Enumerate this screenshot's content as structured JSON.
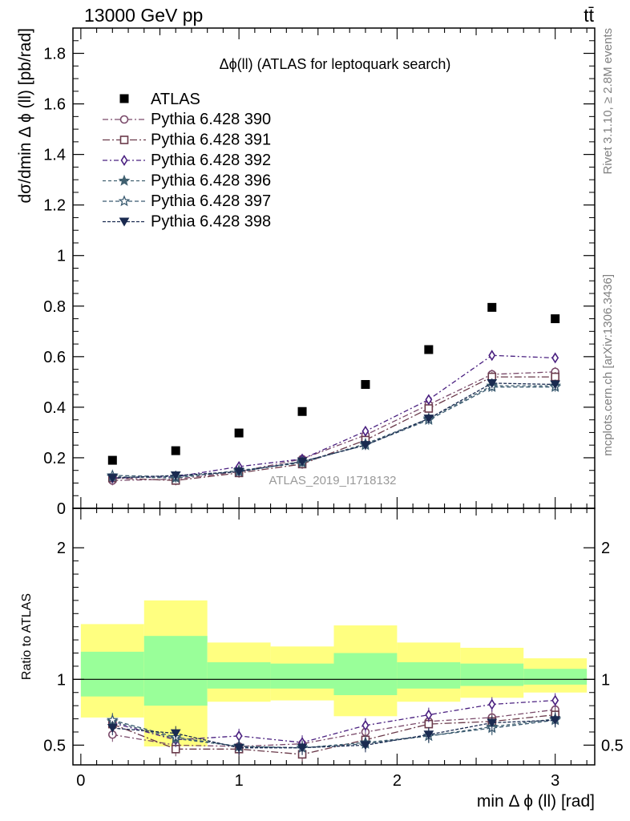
{
  "header": {
    "left": "13000 GeV pp",
    "right": "tt̄"
  },
  "side_labels": {
    "rivet": "Rivet 3.1.10, ≥ 2.8M events",
    "mcplots": "mcplots.cern.ch [arXiv:1306.3436]"
  },
  "watermark": "ATLAS_2019_I1718132",
  "colors": {
    "data": "#000000",
    "series": [
      "#7a4a6a",
      "#6a3a4a",
      "#4a2080",
      "#406070",
      "#3a5a70",
      "#1a2a50"
    ],
    "band_outer": "#ffff80",
    "band_inner": "#99ff99"
  },
  "chart_data": {
    "type": "scatter",
    "title": "Δϕ(ll) (ATLAS for leptoquark search)",
    "xlabel": "min Δ ϕ (ll) [rad]",
    "ylabel": "dσ/dmin Δ ϕ (ll) [pb/rad]",
    "xlim": [
      -0.05,
      3.25
    ],
    "ylim": [
      0,
      1.9
    ],
    "xticks": [
      "0",
      "1",
      "2",
      "3"
    ],
    "yticks": [
      "0",
      "0.2",
      "0.4",
      "0.6",
      "0.8",
      "1",
      "1.2",
      "1.4",
      "1.6",
      "1.8"
    ],
    "legend_position": "top-left",
    "grid": false,
    "x": [
      0.2,
      0.6,
      1.0,
      1.4,
      1.8,
      2.2,
      2.6,
      3.0
    ],
    "bin_edges": [
      0,
      0.4,
      0.8,
      1.2,
      1.6,
      2.0,
      2.4,
      2.8,
      3.2
    ],
    "data": {
      "name": "ATLAS",
      "values": [
        0.19,
        0.228,
        0.298,
        0.383,
        0.49,
        0.628,
        0.795,
        0.75
      ]
    },
    "series": [
      {
        "name": "Pythia 6.428 390",
        "values": [
          0.11,
          0.115,
          0.145,
          0.195,
          0.29,
          0.41,
          0.53,
          0.54
        ]
      },
      {
        "name": "Pythia 6.428 391",
        "values": [
          0.12,
          0.11,
          0.14,
          0.175,
          0.27,
          0.395,
          0.52,
          0.52
        ]
      },
      {
        "name": "Pythia 6.428 392",
        "values": [
          0.12,
          0.125,
          0.165,
          0.195,
          0.305,
          0.43,
          0.605,
          0.595
        ]
      },
      {
        "name": "Pythia 6.428 396",
        "values": [
          0.125,
          0.12,
          0.15,
          0.18,
          0.255,
          0.355,
          0.485,
          0.485
        ]
      },
      {
        "name": "Pythia 6.428 397",
        "values": [
          0.13,
          0.125,
          0.145,
          0.185,
          0.25,
          0.35,
          0.48,
          0.48
        ]
      },
      {
        "name": "Pythia 6.428 398",
        "values": [
          0.12,
          0.13,
          0.145,
          0.185,
          0.25,
          0.355,
          0.495,
          0.49
        ]
      }
    ],
    "ratio": {
      "ylabel": "Ratio to ATLAS",
      "ylim": [
        0.35,
        2.3
      ],
      "yticks": [
        "0.5",
        "1",
        "2"
      ],
      "band_outer": {
        "lo": [
          0.71,
          0.49,
          0.83,
          0.84,
          0.72,
          0.83,
          0.86,
          0.9
        ],
        "hi": [
          1.42,
          1.6,
          1.28,
          1.25,
          1.41,
          1.28,
          1.24,
          1.16
        ]
      },
      "band_inner": {
        "lo": [
          0.87,
          0.8,
          0.93,
          0.93,
          0.88,
          0.93,
          0.95,
          0.96
        ],
        "hi": [
          1.21,
          1.33,
          1.13,
          1.12,
          1.2,
          1.13,
          1.12,
          1.08
        ]
      },
      "series": [
        {
          "name": "Pythia 6.428 390",
          "values": [
            0.58,
            0.5,
            0.49,
            0.51,
            0.6,
            0.68,
            0.71,
            0.77
          ]
        },
        {
          "name": "Pythia 6.428 391",
          "values": [
            0.66,
            0.47,
            0.47,
            0.43,
            0.54,
            0.66,
            0.68,
            0.73
          ]
        },
        {
          "name": "Pythia 6.428 392",
          "values": [
            0.67,
            0.54,
            0.57,
            0.52,
            0.65,
            0.73,
            0.81,
            0.84
          ]
        },
        {
          "name": "Pythia 6.428 396",
          "values": [
            0.68,
            0.55,
            0.49,
            0.48,
            0.52,
            0.57,
            0.64,
            0.7
          ]
        },
        {
          "name": "Pythia 6.428 397",
          "values": [
            0.69,
            0.56,
            0.49,
            0.48,
            0.51,
            0.57,
            0.63,
            0.69
          ]
        },
        {
          "name": "Pythia 6.428 398",
          "values": [
            0.63,
            0.59,
            0.48,
            0.48,
            0.5,
            0.58,
            0.67,
            0.69
          ]
        }
      ]
    }
  }
}
